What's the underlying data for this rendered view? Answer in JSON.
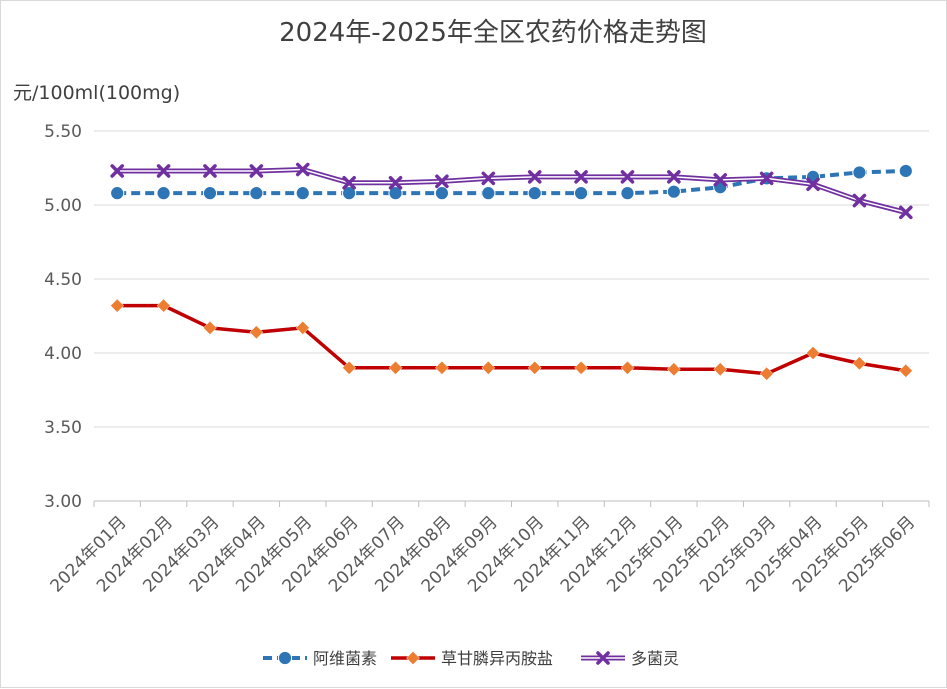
{
  "chart_data": {
    "type": "line",
    "title": "2024年-2025年全区农药价格走势图",
    "ylabel": "元/100ml(100mg)",
    "xlabel": "",
    "ylim": [
      3.0,
      5.5
    ],
    "yticks": [
      "3.00",
      "3.50",
      "4.00",
      "4.50",
      "5.00",
      "5.50"
    ],
    "grid": true,
    "legend_position": "bottom",
    "categories": [
      "2024年01月",
      "2024年02月",
      "2024年03月",
      "2024年04月",
      "2024年05月",
      "2024年06月",
      "2024年07月",
      "2024年08月",
      "2024年09月",
      "2024年10月",
      "2024年11月",
      "2024年12月",
      "2025年01月",
      "2025年02月",
      "2025年03月",
      "2025年04月",
      "2025年05月",
      "2025年06月"
    ],
    "series": [
      {
        "name": "阿维菌素",
        "color": "#2e75b6",
        "line_style": "dashed",
        "marker": "circle",
        "values": [
          5.08,
          5.08,
          5.08,
          5.08,
          5.08,
          5.08,
          5.08,
          5.08,
          5.08,
          5.08,
          5.08,
          5.08,
          5.09,
          5.12,
          5.18,
          5.19,
          5.22,
          5.23
        ]
      },
      {
        "name": "草甘膦异丙胺盐",
        "color": "#c00000",
        "marker_color": "#ed7d31",
        "line_style": "solid",
        "marker": "diamond",
        "values": [
          4.32,
          4.32,
          4.17,
          4.14,
          4.17,
          3.9,
          3.9,
          3.9,
          3.9,
          3.9,
          3.9,
          3.9,
          3.89,
          3.89,
          3.86,
          4.0,
          3.93,
          3.88
        ]
      },
      {
        "name": "多菌灵",
        "color": "#7030a0",
        "line_style": "double",
        "marker": "x",
        "values": [
          5.23,
          5.23,
          5.23,
          5.23,
          5.24,
          5.15,
          5.15,
          5.16,
          5.18,
          5.19,
          5.19,
          5.19,
          5.19,
          5.17,
          5.18,
          5.14,
          5.03,
          4.95
        ]
      }
    ]
  }
}
